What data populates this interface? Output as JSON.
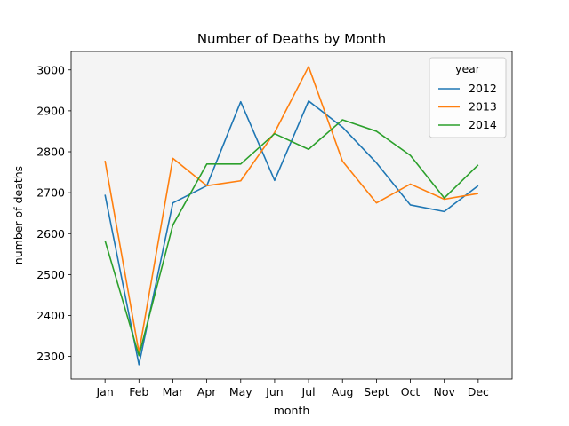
{
  "chart_data": {
    "type": "line",
    "title": "Number of Deaths by Month",
    "xlabel": "month",
    "ylabel": "number of deaths",
    "categories": [
      "Jan",
      "Feb",
      "Mar",
      "Apr",
      "May",
      "Jun",
      "Jul",
      "Aug",
      "Sept",
      "Oct",
      "Nov",
      "Dec"
    ],
    "ylim": [
      2245,
      3045
    ],
    "yticks": [
      2300,
      2400,
      2500,
      2600,
      2700,
      2800,
      2900,
      3000
    ],
    "grid": false,
    "legend": {
      "title": "year",
      "placement": "top-right"
    },
    "series": [
      {
        "name": "2012",
        "color": "#1f77b4",
        "values": [
          2695,
          2280,
          2675,
          2717,
          2922,
          2730,
          2924,
          2860,
          2773,
          2670,
          2654,
          2717
        ]
      },
      {
        "name": "2013",
        "color": "#ff7f0e",
        "values": [
          2778,
          2310,
          2784,
          2717,
          2729,
          2847,
          3008,
          2777,
          2675,
          2721,
          2684,
          2698
        ]
      },
      {
        "name": "2014",
        "color": "#2ca02c",
        "values": [
          2583,
          2302,
          2621,
          2770,
          2770,
          2844,
          2806,
          2878,
          2850,
          2791,
          2687,
          2768
        ]
      }
    ],
    "colors": {
      "plot_background": "#f4f4f4",
      "axis": "#000000",
      "legend_border": "#cccccc"
    }
  }
}
